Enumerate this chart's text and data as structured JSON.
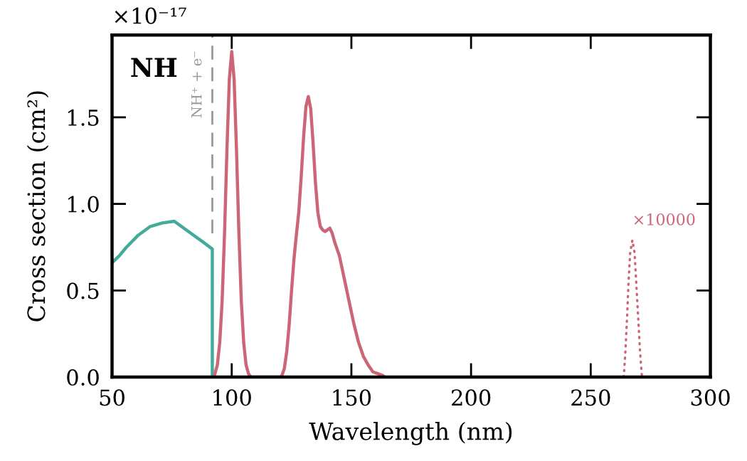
{
  "chart_data": {
    "type": "line",
    "title": "NH",
    "xlabel": "Wavelength (nm)",
    "ylabel": "Cross section (cm²)",
    "annotations": [
      "×10⁻¹⁷"
    ],
    "series": [
      {
        "color": "#44aa99",
        "line_style": "solid",
        "x": [
          50,
          53,
          56,
          61,
          66,
          71,
          76,
          80,
          84,
          88,
          91.9,
          91.9
        ],
        "values": [
          0.66,
          0.7,
          0.75,
          0.82,
          0.87,
          0.89,
          0.9,
          0.86,
          0.82,
          0.78,
          0.74,
          0
        ]
      },
      {
        "color": "#cc6677",
        "line_style": "solid",
        "x": [
          92.5,
          93,
          94,
          95,
          96,
          97,
          98,
          99,
          100,
          101,
          102,
          103,
          104,
          105,
          106,
          107,
          108,
          120.5,
          121,
          122,
          123,
          124,
          125,
          126,
          127,
          128,
          129,
          130,
          131,
          132,
          133,
          134,
          135,
          136,
          137,
          138,
          139,
          140,
          141,
          142,
          143,
          145,
          147,
          149,
          151,
          153,
          155,
          157,
          159,
          161,
          163,
          164
        ],
        "values": [
          0,
          0.02,
          0.07,
          0.2,
          0.44,
          0.83,
          1.31,
          1.72,
          1.88,
          1.72,
          1.31,
          0.83,
          0.44,
          0.2,
          0.07,
          0.02,
          0,
          0,
          0.01,
          0.05,
          0.15,
          0.3,
          0.5,
          0.68,
          0.82,
          0.95,
          1.15,
          1.38,
          1.56,
          1.62,
          1.55,
          1.35,
          1.12,
          0.95,
          0.87,
          0.85,
          0.84,
          0.85,
          0.86,
          0.83,
          0.78,
          0.7,
          0.57,
          0.44,
          0.31,
          0.2,
          0.12,
          0.07,
          0.03,
          0.02,
          0.01,
          0
        ]
      },
      {
        "name": "×10000",
        "color": "#cc6677",
        "line_style": "dotted",
        "x": [
          263.8,
          264.5,
          265.2,
          265.8,
          266.5,
          267.4,
          268.3,
          269,
          269.8,
          270.6,
          271.4
        ],
        "values": [
          0,
          0.15,
          0.35,
          0.55,
          0.72,
          0.79,
          0.72,
          0.55,
          0.35,
          0.15,
          0
        ]
      }
    ],
    "ref_lines": [
      {
        "axis": "x",
        "value": 91.9,
        "label": "NH⁺ + e⁻",
        "color": "#999999",
        "line_style": "dashed"
      }
    ],
    "xlim": [
      50,
      300
    ],
    "xticks": [
      50,
      100,
      150,
      200,
      250,
      300
    ],
    "ylim": [
      0,
      1.975
    ],
    "yticks": [
      {
        "value": 0,
        "label": "0.0"
      },
      0.5,
      {
        "value": 1,
        "label": "1.0"
      },
      1.5
    ]
  }
}
